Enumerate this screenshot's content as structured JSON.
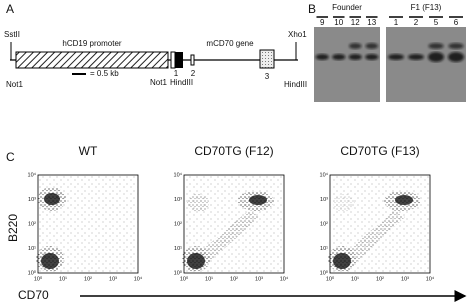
{
  "panel_a": {
    "label": "A",
    "promoter": "hCD19 promoter",
    "gene": "mCD70 gene",
    "sites": [
      "SstII",
      "Xho1",
      "Not1",
      "Not1",
      "HindIII",
      "HindIII"
    ],
    "exons": [
      "1",
      "2",
      "3"
    ],
    "scale": "= 0.5 kb"
  },
  "panel_b": {
    "label": "B",
    "groups": [
      {
        "name": "Founder",
        "lanes": [
          "9",
          "10",
          "12",
          "13"
        ]
      },
      {
        "name": "F1 (F13)",
        "lanes": [
          "1",
          "2",
          "5",
          "6"
        ]
      }
    ]
  },
  "panel_c": {
    "label": "C",
    "plots": [
      "WT",
      "CD70TG (F12)",
      "CD70TG (F13)"
    ],
    "y_label": "B220",
    "x_label": "CD70",
    "ticks": [
      "10⁰",
      "10¹",
      "10²",
      "10³",
      "10⁴"
    ]
  }
}
